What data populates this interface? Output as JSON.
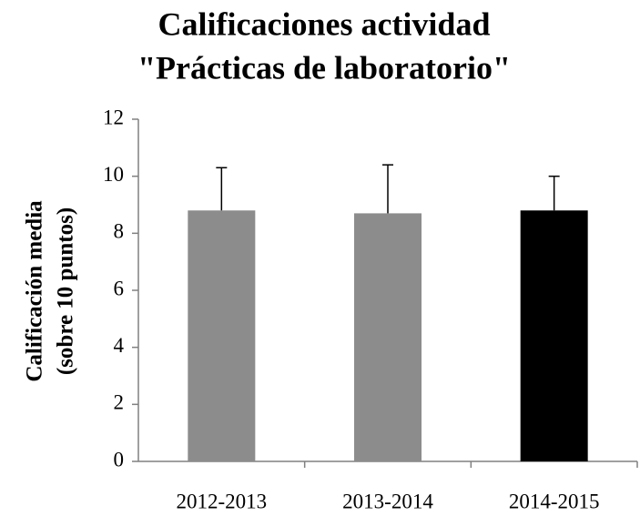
{
  "chart_data": {
    "type": "bar",
    "title": [
      "Calificaciones actividad",
      "\"Prácticas de laboratorio\""
    ],
    "y_label": [
      "Calificación media",
      "(sobre 10 puntos)"
    ],
    "categories": [
      "2012-2013",
      "2013-2014",
      "2014-2015"
    ],
    "values": [
      8.8,
      8.7,
      8.8
    ],
    "errors": [
      1.5,
      1.7,
      1.2
    ],
    "colors": [
      "#8c8c8c",
      "#8c8c8c",
      "#000000"
    ],
    "ylim": [
      0,
      12
    ],
    "yticks": [
      0,
      2,
      4,
      6,
      8,
      10,
      12
    ],
    "grid": false
  }
}
